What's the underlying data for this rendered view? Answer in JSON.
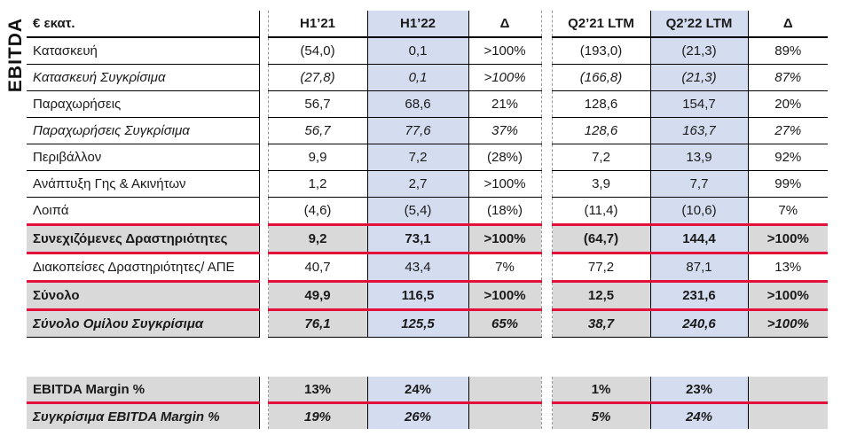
{
  "side_label": "EBITDA",
  "colors": {
    "highlight_blue": "#d4ddf0",
    "section_gray": "#d9d9d9",
    "accent_red": "#e3103c",
    "border_black": "#000000",
    "dash_gray": "#9a9a9a"
  },
  "table": {
    "unit_label": "€ εκατ.",
    "column_headers": [
      "H1’21",
      "H1’22",
      "Δ",
      "Q2’21 LTM",
      "Q2’22 LTM",
      "Δ"
    ],
    "highlighted_columns": [
      "H1’22",
      "Q2’22 LTM"
    ],
    "rows": [
      {
        "label": "Κατασκευή",
        "emphasis": "normal",
        "section": false,
        "red_top": false,
        "red_bottom": false,
        "values": [
          "(54,0)",
          "0,1",
          ">100%",
          "(193,0)",
          "(21,3)",
          "89%"
        ]
      },
      {
        "label": "Κατασκευή Συγκρίσιμα",
        "emphasis": "italic",
        "section": false,
        "red_top": false,
        "red_bottom": false,
        "values": [
          "(27,8)",
          "0,1",
          ">100%",
          "(166,8)",
          "(21,3)",
          "87%"
        ]
      },
      {
        "label": "Παραχωρήσεις",
        "emphasis": "normal",
        "section": false,
        "red_top": false,
        "red_bottom": false,
        "values": [
          "56,7",
          "68,6",
          "21%",
          "128,6",
          "154,7",
          "20%"
        ]
      },
      {
        "label": "Παραχωρήσεις Συγκρίσιμα",
        "emphasis": "italic",
        "section": false,
        "red_top": false,
        "red_bottom": false,
        "values": [
          "56,7",
          "77,6",
          "37%",
          "128,6",
          "163,7",
          "27%"
        ]
      },
      {
        "label": "Περιβάλλον",
        "emphasis": "normal",
        "section": false,
        "red_top": false,
        "red_bottom": false,
        "values": [
          "9,9",
          "7,2",
          "(28%)",
          "7,2",
          "13,9",
          "92%"
        ]
      },
      {
        "label": "Ανάπτυξη Γης & Ακινήτων",
        "emphasis": "normal",
        "section": false,
        "red_top": false,
        "red_bottom": false,
        "values": [
          "1,2",
          "2,7",
          ">100%",
          "3,9",
          "7,7",
          "99%"
        ]
      },
      {
        "label": "Λοιπά",
        "emphasis": "normal",
        "section": false,
        "red_top": false,
        "red_bottom": false,
        "values": [
          "(4,6)",
          "(5,4)",
          "(18%)",
          "(11,4)",
          "(10,6)",
          "7%"
        ]
      },
      {
        "label": "Συνεχιζόμενες Δραστηριότητες",
        "emphasis": "bold",
        "section": true,
        "red_top": true,
        "red_bottom": true,
        "values": [
          "9,2",
          "73,1",
          ">100%",
          "(64,7)",
          "144,4",
          ">100%"
        ]
      },
      {
        "label": "Διακοπείσες Δραστηριότητες/ ΑΠΕ",
        "emphasis": "normal",
        "section": false,
        "red_top": false,
        "red_bottom": false,
        "values": [
          "40,7",
          "43,4",
          "7%",
          "77,2",
          "87,1",
          "13%"
        ]
      },
      {
        "label": "Σύνολο",
        "emphasis": "bold",
        "section": true,
        "red_top": true,
        "red_bottom": true,
        "values": [
          "49,9",
          "116,5",
          ">100%",
          "12,5",
          "231,6",
          ">100%"
        ]
      },
      {
        "label": "Σύνολο Ομίλου Συγκρίσιμα",
        "emphasis": "bold-italic",
        "section": true,
        "red_top": true,
        "red_bottom": false,
        "values": [
          "76,1",
          "125,5",
          "65%",
          "38,7",
          "240,6",
          ">100%"
        ]
      }
    ],
    "margin_rows": [
      {
        "label": "EBITDA Margin %",
        "emphasis": "bold",
        "section": true,
        "red_top": false,
        "red_bottom": true,
        "values": [
          "13%",
          "24%",
          "",
          "1%",
          "23%",
          ""
        ]
      },
      {
        "label": "Συγκρίσιμα EBITDA Margin %",
        "emphasis": "bold-italic",
        "section": true,
        "red_top": false,
        "red_bottom": false,
        "values": [
          "19%",
          "26%",
          "",
          "5%",
          "24%",
          ""
        ]
      }
    ]
  }
}
